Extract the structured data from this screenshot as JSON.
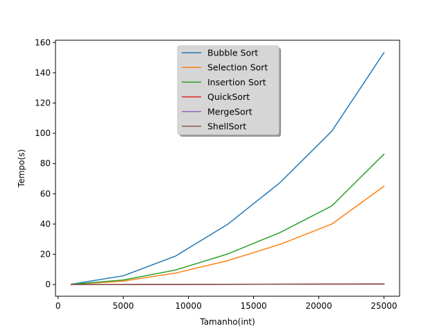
{
  "chart_data": {
    "type": "line",
    "title": "",
    "xlabel": "Tamanho(int)",
    "ylabel": "Tempo(s)",
    "xlim": [
      -200,
      26200
    ],
    "ylim": [
      -7.7,
      161.5
    ],
    "x_ticks": [
      0,
      5000,
      10000,
      15000,
      20000,
      25000
    ],
    "y_ticks": [
      0,
      20,
      40,
      60,
      80,
      100,
      120,
      140,
      160
    ],
    "grid": false,
    "legend_position": "top-center",
    "x": [
      1000,
      5000,
      9000,
      13000,
      17000,
      21000,
      25000
    ],
    "series": [
      {
        "name": "Bubble Sort",
        "color": "#1f77b4",
        "values": [
          0.2,
          5.8,
          18.8,
          39.8,
          67.2,
          101.4,
          153.3
        ]
      },
      {
        "name": "Selection Sort",
        "color": "#ff7f0e",
        "values": [
          0.1,
          2.3,
          7.6,
          15.8,
          26.5,
          40.0,
          65.0
        ]
      },
      {
        "name": "Insertion Sort",
        "color": "#2ca02c",
        "values": [
          0.1,
          3.0,
          9.6,
          20.2,
          34.3,
          52.0,
          86.2
        ]
      },
      {
        "name": "QuickSort",
        "color": "#d62728",
        "values": [
          0.0,
          0.05,
          0.1,
          0.15,
          0.2,
          0.25,
          0.3
        ]
      },
      {
        "name": "MergeSort",
        "color": "#9467bd",
        "values": [
          0.0,
          0.05,
          0.1,
          0.15,
          0.2,
          0.3,
          0.35
        ]
      },
      {
        "name": "ShellSort",
        "color": "#8c564b",
        "values": [
          0.0,
          0.05,
          0.1,
          0.2,
          0.3,
          0.4,
          0.5
        ]
      }
    ]
  }
}
